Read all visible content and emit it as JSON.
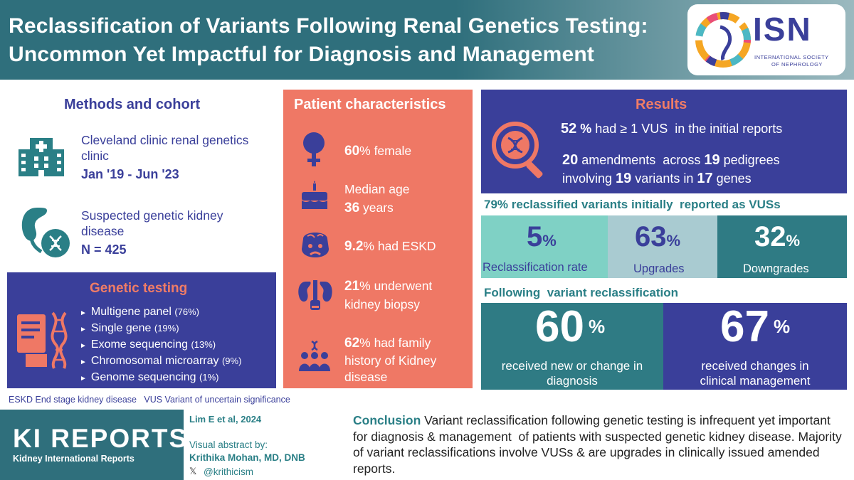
{
  "header": {
    "title_line1": "Reclassification of Variants Following Renal Genetics Testing:",
    "title_line2": "Uncommon Yet Impactful for Diagnosis and Management",
    "logo": {
      "name": "ISN",
      "sub1": "INTERNATIONAL SOCIETY",
      "sub2": "OF NEPHROLOGY"
    }
  },
  "methods": {
    "title": "Methods and cohort",
    "clinic": "Cleveland clinic renal genetics clinic",
    "dates": "Jan '19 - Jun '23",
    "disease": "Suspected genetic kidney disease",
    "cohort": "N = 425"
  },
  "genetic_testing": {
    "title": "Genetic testing",
    "items": [
      {
        "label": "Multigene panel",
        "pct": "(76%)"
      },
      {
        "label": "Single gene",
        "pct": "(19%)"
      },
      {
        "label": "Exome sequencing",
        "pct": "(13%)"
      },
      {
        "label": "Chromosomal microarray",
        "pct": "(9%)"
      },
      {
        "label": "Genome sequencing",
        "pct": "(1%)"
      }
    ]
  },
  "abbreviations": "ESKD End stage kidney disease   VUS Variant of uncertain significance",
  "patient": {
    "title": "Patient characteristics",
    "female_num": "60",
    "female_text": "% female",
    "age_label": "Median age",
    "age_num": "36",
    "age_unit": " years",
    "eskd_num": "9.2",
    "eskd_text": "% had ESKD",
    "biopsy_num": "21",
    "biopsy_text1": "% underwent",
    "biopsy_text2": "kidney biopsy",
    "family_num": "62",
    "family_text1": "% had family",
    "family_text2": "history of Kidney",
    "family_text3": "disease"
  },
  "results": {
    "title": "Results",
    "vus_num": "52",
    "vus_pct": " %",
    "vus_text": " had ≥ 1 VUS  in the initial reports",
    "amend_num": "20",
    "amend_text1": " amendments  across ",
    "ped_num": "19",
    "amend_text2": " pedigrees",
    "inv_text1": "involving ",
    "var_num": "19",
    "inv_text2": " variants in ",
    "gene_num": "17",
    "inv_text3": " genes"
  },
  "vus_line": "79% reclassified variants initially  reported as VUSs",
  "stats": [
    {
      "value": "5",
      "unit": "%",
      "label": "Reclassification rate"
    },
    {
      "value": "63",
      "unit": "%",
      "label": "Upgrades"
    },
    {
      "value": "32",
      "unit": "%",
      "label": "Downgrades"
    }
  ],
  "following_line": "Following  variant reclassification",
  "outcomes": [
    {
      "value": "60",
      "unit": "%",
      "label1": "received new or change in",
      "label2": "diagnosis"
    },
    {
      "value": "67",
      "unit": "%",
      "label1": "received changes in",
      "label2": "clinical management"
    }
  ],
  "footer": {
    "journal": "KI REPORTS",
    "journal_sub": "Kidney International Reports",
    "citation": "Lim E et al, 2024",
    "va_label": "Visual abstract by:",
    "va_author": "Krithika Mohan, MD, DNB",
    "handle": "@krithicism",
    "conclusion_lead": "Conclusion",
    "conclusion_text": " Variant reclassification following genetic testing is infrequent yet important for diagnosis & management  of patients with suspected genetic kidney disease. Majority of variant reclassifications involve VUSs & are upgrades in clinically issued amended reports."
  },
  "colors": {
    "teal": "#2f6f7c",
    "indigo": "#3a3f9a",
    "coral": "#ef7865",
    "mint": "#7fd1c5",
    "pale": "#a9cbd1",
    "darkteal": "#2a7f86"
  }
}
